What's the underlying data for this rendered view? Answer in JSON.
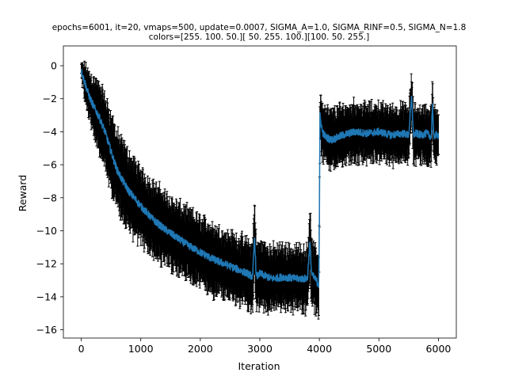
{
  "chart_data": {
    "type": "line",
    "title_lines": [
      "epochs=6001, it=20, vmaps=500, update=0.0007, SIGMA_A=1.0, SIGMA_RINF=0.5, SIGMA_N=1.8",
      "colors=[255. 100.  50.][ 50. 255. 100.][100.  50. 255.]"
    ],
    "xlabel": "Iteration",
    "ylabel": "Reward",
    "xlim": [
      -300,
      6300
    ],
    "ylim": [
      -16.5,
      1.2
    ],
    "xticks": [
      0,
      1000,
      2000,
      3000,
      4000,
      5000,
      6000
    ],
    "yticks": [
      0,
      -2,
      -4,
      -6,
      -8,
      -10,
      -12,
      -14,
      -16
    ],
    "grid": false,
    "legend": "none",
    "error_bars": true,
    "colors": {
      "mean_line": "#1f77b4",
      "error_bars": "#000000"
    },
    "series": [
      {
        "x": [
          0,
          50,
          100,
          150,
          200,
          300,
          400,
          500,
          600,
          700,
          800,
          1000,
          1200,
          1400,
          1600,
          1800,
          2000,
          2200,
          2400,
          2600,
          2800,
          2880,
          2910,
          2940,
          3000,
          3200,
          3400,
          3600,
          3800,
          3840,
          3870,
          3900,
          3950,
          3990,
          4000,
          4010,
          4050,
          4100,
          4200,
          4400,
          4600,
          4800,
          5000,
          5200,
          5400,
          5500,
          5550,
          5580,
          5620,
          5700,
          5800,
          5880,
          5900,
          5920,
          5950,
          6000
        ],
        "y": [
          -0.3,
          -0.9,
          -1.5,
          -2.0,
          -2.4,
          -3.1,
          -4.0,
          -5.2,
          -6.3,
          -7.0,
          -7.6,
          -8.5,
          -9.3,
          -9.9,
          -10.4,
          -10.9,
          -11.3,
          -11.7,
          -12.0,
          -12.3,
          -12.6,
          -12.8,
          -10.3,
          -12.8,
          -12.6,
          -12.9,
          -12.8,
          -12.9,
          -12.9,
          -10.7,
          -12.6,
          -12.8,
          -13.0,
          -13.3,
          -9.5,
          -3.0,
          -4.0,
          -4.3,
          -4.5,
          -4.2,
          -4.0,
          -4.1,
          -4.0,
          -4.2,
          -4.1,
          -4.2,
          -1.9,
          -4.2,
          -4.1,
          -4.2,
          -4.1,
          -4.3,
          -2.3,
          -4.3,
          -4.2,
          -4.2
        ],
        "err": [
          0.3,
          0.8,
          1.1,
          1.3,
          1.5,
          1.7,
          1.9,
          2.0,
          2.0,
          2.0,
          2.0,
          1.9,
          1.9,
          1.9,
          1.8,
          1.8,
          1.8,
          1.8,
          1.7,
          1.7,
          1.7,
          1.7,
          2.2,
          1.7,
          1.7,
          1.6,
          1.6,
          1.6,
          1.6,
          2.0,
          1.6,
          1.6,
          1.7,
          1.7,
          1.8,
          1.3,
          1.5,
          1.5,
          1.5,
          1.5,
          1.5,
          1.4,
          1.4,
          1.4,
          1.4,
          1.4,
          1.2,
          1.4,
          1.4,
          1.4,
          1.4,
          1.4,
          1.2,
          1.4,
          1.4,
          1.4
        ]
      }
    ]
  }
}
